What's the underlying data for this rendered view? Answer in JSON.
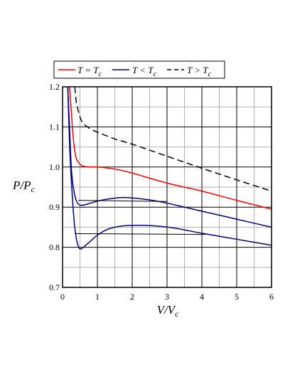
{
  "chart_data": {
    "type": "line",
    "xlabel": "V/V",
    "xlabel_sub": "c",
    "ylabel": "P/P",
    "ylabel_sub": "c",
    "xlim": [
      0,
      6
    ],
    "ylim": [
      0.7,
      1.2
    ],
    "x_ticks": [
      "0",
      "1",
      "2",
      "3",
      "4",
      "5",
      "6"
    ],
    "y_ticks": [
      "0.7",
      "0.8",
      "0.9",
      "1.0",
      "1.1",
      "1.2"
    ],
    "grid": true,
    "legend_position": "top",
    "legend": [
      {
        "text": "T = T",
        "sub": "c",
        "color": "#ff0000",
        "dash": "none"
      },
      {
        "text": "T < T",
        "sub": "c",
        "color": "#00007f",
        "dash": "none"
      },
      {
        "text": "T > T",
        "sub": "c",
        "color": "#000000",
        "dash": "dashed"
      }
    ],
    "series": [
      {
        "legend_index": 0,
        "color": "#ff0000",
        "dash": "none",
        "points": [
          [
            0.2,
            1.2
          ],
          [
            0.25,
            1.14
          ],
          [
            0.3,
            1.08
          ],
          [
            0.35,
            1.04
          ],
          [
            0.4,
            1.02
          ],
          [
            0.5,
            1.007
          ],
          [
            0.6,
            1.002
          ],
          [
            0.8,
            1.0
          ],
          [
            1.0,
            1.0
          ],
          [
            1.5,
            0.995
          ],
          [
            2.0,
            0.985
          ],
          [
            3.0,
            0.96
          ],
          [
            4.0,
            0.94
          ],
          [
            5.0,
            0.917
          ],
          [
            6.0,
            0.895
          ]
        ]
      },
      {
        "legend_index": 1,
        "color": "#00007f",
        "dash": "none",
        "points": [
          [
            0.15,
            1.2
          ],
          [
            0.2,
            1.1
          ],
          [
            0.25,
            1.0
          ],
          [
            0.3,
            0.955
          ],
          [
            0.35,
            0.93
          ],
          [
            0.4,
            0.915
          ],
          [
            0.45,
            0.908
          ],
          [
            0.5,
            0.905
          ],
          [
            0.6,
            0.905
          ],
          [
            0.8,
            0.91
          ],
          [
            1.0,
            0.915
          ],
          [
            1.3,
            0.92
          ],
          [
            1.7,
            0.924
          ],
          [
            2.0,
            0.923
          ],
          [
            2.5,
            0.918
          ],
          [
            3.0,
            0.91
          ],
          [
            3.5,
            0.9
          ],
          [
            4.0,
            0.89
          ],
          [
            5.0,
            0.87
          ],
          [
            6.0,
            0.85
          ]
        ]
      },
      {
        "legend_index": 1,
        "color": "#00007f",
        "dash": "none",
        "points": [
          [
            0.15,
            1.2
          ],
          [
            0.2,
            1.06
          ],
          [
            0.25,
            0.97
          ],
          [
            0.3,
            0.9
          ],
          [
            0.35,
            0.85
          ],
          [
            0.4,
            0.82
          ],
          [
            0.45,
            0.803
          ],
          [
            0.5,
            0.796
          ],
          [
            0.55,
            0.797
          ],
          [
            0.6,
            0.8
          ],
          [
            0.8,
            0.815
          ],
          [
            1.0,
            0.83
          ],
          [
            1.3,
            0.845
          ],
          [
            1.7,
            0.853
          ],
          [
            2.2,
            0.855
          ],
          [
            2.7,
            0.853
          ],
          [
            3.2,
            0.848
          ],
          [
            4.0,
            0.835
          ],
          [
            5.0,
            0.82
          ],
          [
            6.0,
            0.805
          ]
        ]
      },
      {
        "legend_index": 2,
        "color": "#000000",
        "dash": "dashed",
        "points": [
          [
            0.35,
            1.2
          ],
          [
            0.4,
            1.16
          ],
          [
            0.5,
            1.125
          ],
          [
            0.6,
            1.108
          ],
          [
            0.8,
            1.095
          ],
          [
            1.0,
            1.087
          ],
          [
            1.5,
            1.07
          ],
          [
            2.0,
            1.057
          ],
          [
            3.0,
            1.027
          ],
          [
            4.0,
            0.997
          ],
          [
            5.0,
            0.968
          ],
          [
            6.0,
            0.94
          ]
        ]
      },
      {
        "legend_index": null,
        "color": "#000000",
        "dash": "none",
        "points": [
          [
            0.45,
            0.917
          ],
          [
            3.0,
            0.914
          ]
        ]
      },
      {
        "legend_index": null,
        "color": "#000000",
        "dash": "none",
        "points": [
          [
            0.35,
            0.834
          ],
          [
            4.1,
            0.832
          ]
        ]
      }
    ]
  }
}
